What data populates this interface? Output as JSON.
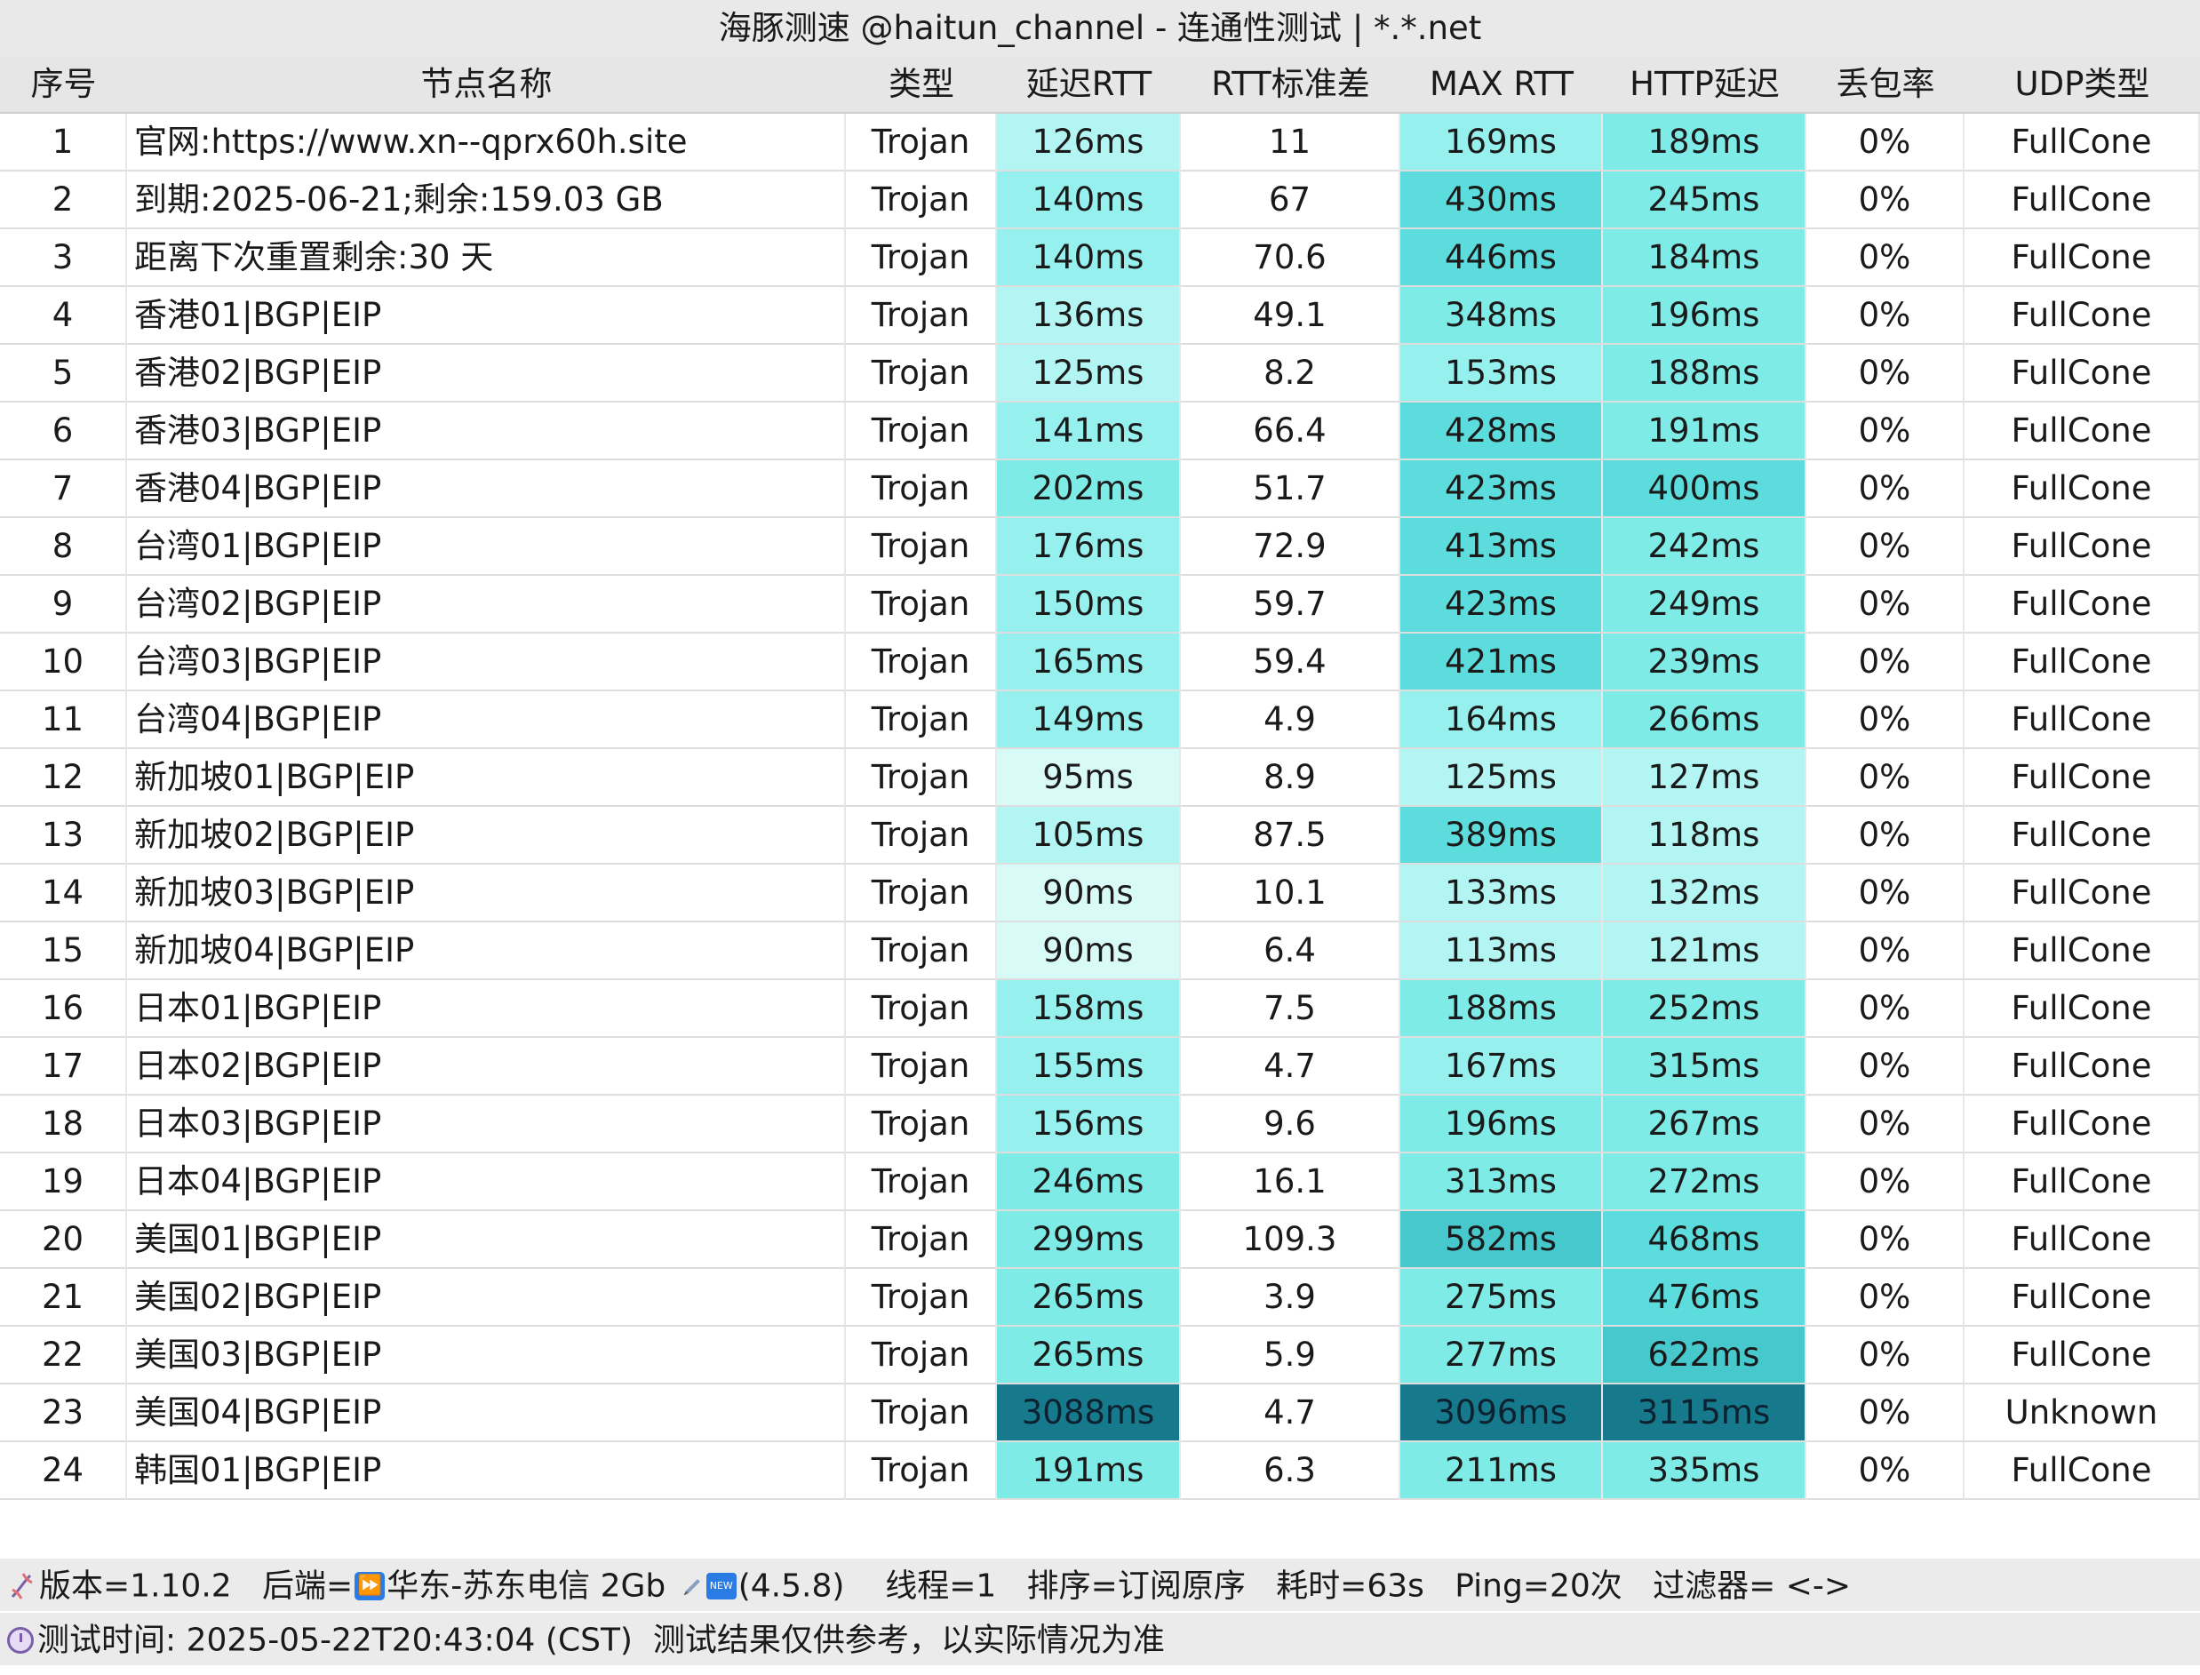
{
  "window": {
    "title": "海豚测速 @haitun_channel - 连通性测试 | *.*.net"
  },
  "table": {
    "headers": [
      "序号",
      "节点名称",
      "类型",
      "延迟RTT",
      "RTT标准差",
      "MAX RTT",
      "HTTP延迟",
      "丢包率",
      "UDP类型"
    ],
    "rows": [
      [
        "1",
        "官网:https://www.xn--qprx60h.site",
        "Trojan",
        "126ms",
        "11",
        "169ms",
        "189ms",
        "0%",
        "FullCone"
      ],
      [
        "2",
        "到期:2025-06-21;剩余:159.03 GB",
        "Trojan",
        "140ms",
        "67",
        "430ms",
        "245ms",
        "0%",
        "FullCone"
      ],
      [
        "3",
        "距离下次重置剩余:30 天",
        "Trojan",
        "140ms",
        "70.6",
        "446ms",
        "184ms",
        "0%",
        "FullCone"
      ],
      [
        "4",
        "香港01|BGP|EIP",
        "Trojan",
        "136ms",
        "49.1",
        "348ms",
        "196ms",
        "0%",
        "FullCone"
      ],
      [
        "5",
        "香港02|BGP|EIP",
        "Trojan",
        "125ms",
        "8.2",
        "153ms",
        "188ms",
        "0%",
        "FullCone"
      ],
      [
        "6",
        "香港03|BGP|EIP",
        "Trojan",
        "141ms",
        "66.4",
        "428ms",
        "191ms",
        "0%",
        "FullCone"
      ],
      [
        "7",
        "香港04|BGP|EIP",
        "Trojan",
        "202ms",
        "51.7",
        "423ms",
        "400ms",
        "0%",
        "FullCone"
      ],
      [
        "8",
        "台湾01|BGP|EIP",
        "Trojan",
        "176ms",
        "72.9",
        "413ms",
        "242ms",
        "0%",
        "FullCone"
      ],
      [
        "9",
        "台湾02|BGP|EIP",
        "Trojan",
        "150ms",
        "59.7",
        "423ms",
        "249ms",
        "0%",
        "FullCone"
      ],
      [
        "10",
        "台湾03|BGP|EIP",
        "Trojan",
        "165ms",
        "59.4",
        "421ms",
        "239ms",
        "0%",
        "FullCone"
      ],
      [
        "11",
        "台湾04|BGP|EIP",
        "Trojan",
        "149ms",
        "4.9",
        "164ms",
        "266ms",
        "0%",
        "FullCone"
      ],
      [
        "12",
        "新加坡01|BGP|EIP",
        "Trojan",
        "95ms",
        "8.9",
        "125ms",
        "127ms",
        "0%",
        "FullCone"
      ],
      [
        "13",
        "新加坡02|BGP|EIP",
        "Trojan",
        "105ms",
        "87.5",
        "389ms",
        "118ms",
        "0%",
        "FullCone"
      ],
      [
        "14",
        "新加坡03|BGP|EIP",
        "Trojan",
        "90ms",
        "10.1",
        "133ms",
        "132ms",
        "0%",
        "FullCone"
      ],
      [
        "15",
        "新加坡04|BGP|EIP",
        "Trojan",
        "90ms",
        "6.4",
        "113ms",
        "121ms",
        "0%",
        "FullCone"
      ],
      [
        "16",
        "日本01|BGP|EIP",
        "Trojan",
        "158ms",
        "7.5",
        "188ms",
        "252ms",
        "0%",
        "FullCone"
      ],
      [
        "17",
        "日本02|BGP|EIP",
        "Trojan",
        "155ms",
        "4.7",
        "167ms",
        "315ms",
        "0%",
        "FullCone"
      ],
      [
        "18",
        "日本03|BGP|EIP",
        "Trojan",
        "156ms",
        "9.6",
        "196ms",
        "267ms",
        "0%",
        "FullCone"
      ],
      [
        "19",
        "日本04|BGP|EIP",
        "Trojan",
        "246ms",
        "16.1",
        "313ms",
        "272ms",
        "0%",
        "FullCone"
      ],
      [
        "20",
        "美国01|BGP|EIP",
        "Trojan",
        "299ms",
        "109.3",
        "582ms",
        "468ms",
        "0%",
        "FullCone"
      ],
      [
        "21",
        "美国02|BGP|EIP",
        "Trojan",
        "265ms",
        "3.9",
        "275ms",
        "476ms",
        "0%",
        "FullCone"
      ],
      [
        "22",
        "美国03|BGP|EIP",
        "Trojan",
        "265ms",
        "5.9",
        "277ms",
        "622ms",
        "0%",
        "FullCone"
      ],
      [
        "23",
        "美国04|BGP|EIP",
        "Trojan",
        "3088ms",
        "4.7",
        "3096ms",
        "3115ms",
        "0%",
        "Unknown"
      ],
      [
        "24",
        "韩国01|BGP|EIP",
        "Trojan",
        "191ms",
        "6.3",
        "211ms",
        "335ms",
        "0%",
        "FullCone"
      ]
    ]
  },
  "colors": {
    "latency_scale": [
      "#d9fbf8",
      "#b3f5f2",
      "#96f1ee",
      "#7eebe7",
      "#5ddcdd",
      "#47c8cd"
    ],
    "latency_extreme": "#167a8c",
    "header_bg": "#e6e6e6"
  },
  "footer": {
    "line1": {
      "icon_left": "dna-icon",
      "version": "版本=1.10.2",
      "backend_label": "后端=",
      "backend_icon": "fast-forward-icon",
      "backend": "华东-苏东电信 2Gb",
      "new_icon": "new-badge-icon",
      "new_version": "(4.5.8)",
      "threads": "线程=1",
      "sort": "排序=订阅原序",
      "elapsed": "耗时=63s",
      "ping": "Ping=20次",
      "filter": "过滤器= <->"
    },
    "line2": {
      "icon": "clock-icon",
      "test_time": "测试时间: 2025-05-22T20:43:04 (CST)",
      "disclaimer": "测试结果仅供参考，以实际情况为准"
    }
  }
}
